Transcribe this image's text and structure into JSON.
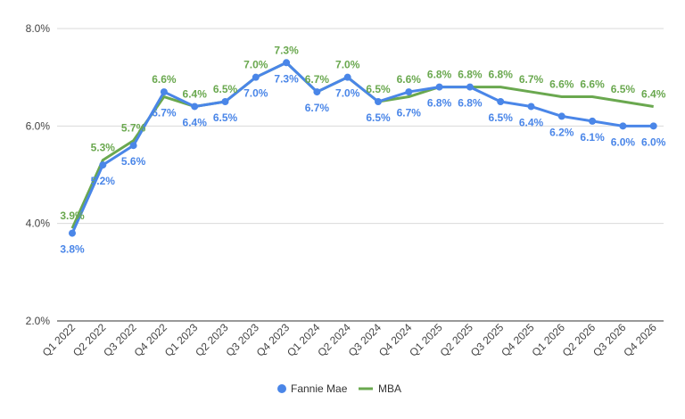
{
  "chart_data": {
    "type": "line",
    "title": "",
    "xlabel": "",
    "ylabel": "",
    "categories": [
      "Q1 2022",
      "Q2 2022",
      "Q3 2022",
      "Q4 2022",
      "Q1 2023",
      "Q2 2023",
      "Q3 2023",
      "Q4 2023",
      "Q1 2024",
      "Q2 2024",
      "Q3 2024",
      "Q4 2024",
      "Q1 2025",
      "Q2 2025",
      "Q3 2025",
      "Q4 2025",
      "Q1 2026",
      "Q2 2026",
      "Q3 2026",
      "Q4 2026"
    ],
    "ylim": [
      2.0,
      8.0
    ],
    "yticks": [
      "2.0%",
      "4.0%",
      "6.0%",
      "8.0%"
    ],
    "ytick_values": [
      2.0,
      4.0,
      6.0,
      8.0
    ],
    "grid": true,
    "legend_position": "bottom",
    "series": [
      {
        "name": "Fannie Mae",
        "color": "#4a86e8",
        "marker": "circle",
        "values": [
          3.8,
          5.2,
          5.6,
          6.7,
          6.4,
          6.5,
          7.0,
          7.3,
          6.7,
          7.0,
          6.5,
          6.7,
          6.8,
          6.8,
          6.5,
          6.4,
          6.2,
          6.1,
          6.0,
          6.0
        ],
        "labels": [
          "3.8%",
          "5.2%",
          "5.6%",
          "6.7%",
          "6.4%",
          "6.5%",
          "7.0%",
          "7.3%",
          "6.7%",
          "7.0%",
          "6.5%",
          "6.7%",
          "6.8%",
          "6.8%",
          "6.5%",
          "6.4%",
          "6.2%",
          "6.1%",
          "6.0%",
          "6.0%"
        ]
      },
      {
        "name": "MBA",
        "color": "#6aa84f",
        "marker": "none",
        "values": [
          3.9,
          5.3,
          5.7,
          6.6,
          6.4,
          6.5,
          7.0,
          7.3,
          6.7,
          7.0,
          6.5,
          6.6,
          6.8,
          6.8,
          6.8,
          6.7,
          6.6,
          6.6,
          6.5,
          6.4
        ],
        "labels": [
          "3.9%",
          "5.3%",
          "5.7%",
          "6.6%",
          "6.4%",
          "6.5%",
          "7.0%",
          "7.3%",
          "6.7%",
          "7.0%",
          "6.5%",
          "6.6%",
          "6.8%",
          "6.8%",
          "6.8%",
          "6.7%",
          "6.6%",
          "6.6%",
          "6.5%",
          "6.4%"
        ]
      }
    ]
  }
}
